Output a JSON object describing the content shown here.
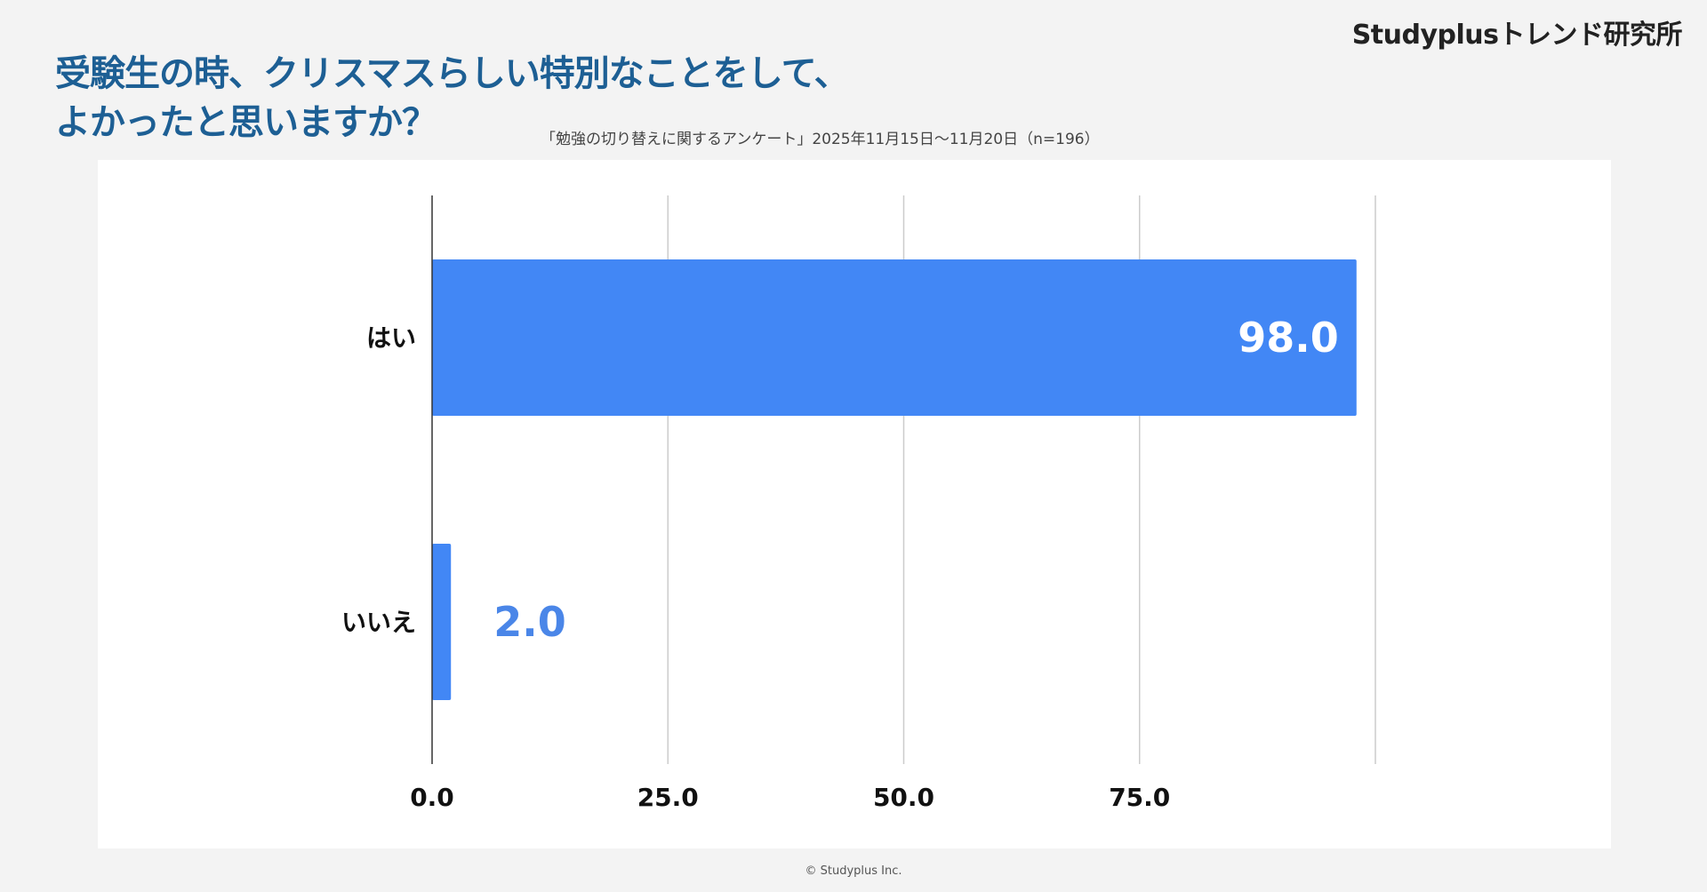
{
  "header": {
    "logo": "Studyplusトレンド研究所",
    "title_line1": "受験生の時、クリスマスらしい特別なことをして、",
    "title_line2": "よかったと思いますか？",
    "subtitle": "「勉強の切り替えに関するアンケート」2025年11月15日〜11月20日（n=196）"
  },
  "footer": {
    "copyright": "© Studyplus Inc."
  },
  "chart_data": {
    "type": "bar",
    "orientation": "horizontal",
    "categories": [
      "はい",
      "いいえ"
    ],
    "values": [
      98.0,
      2.0
    ],
    "data_labels": [
      "98.0",
      "2.0"
    ],
    "xlim": [
      0,
      100
    ],
    "xticks": [
      "0.0",
      "25.0",
      "50.0",
      "75.0"
    ],
    "xtick_values": [
      0,
      25,
      50,
      75
    ],
    "gridlines": [
      25,
      50,
      75,
      100
    ],
    "grid": true,
    "legend": "none",
    "bar_color": "#4287f5",
    "label_outside_color": "#4a86e8",
    "label_inside_color": "#ffffff"
  }
}
